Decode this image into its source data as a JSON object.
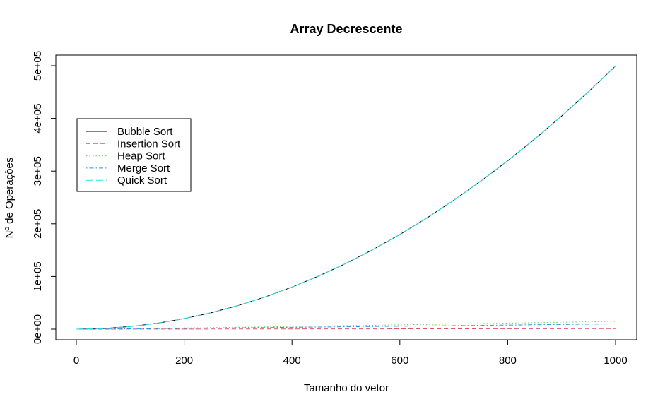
{
  "chart_data": {
    "type": "line",
    "title": "Array Decrescente",
    "xlabel": "Tamanho do vetor",
    "ylabel": "Nº de Operações",
    "xlim": [
      0,
      1000
    ],
    "ylim": [
      0,
      500000
    ],
    "xticks": [
      0,
      200,
      400,
      600,
      800,
      1000
    ],
    "xtick_labels": [
      "0",
      "200",
      "400",
      "600",
      "800",
      "1000"
    ],
    "yticks": [
      0,
      100000,
      200000,
      300000,
      400000,
      500000
    ],
    "ytick_labels": [
      "0e+00",
      "1e+05",
      "2e+05",
      "3e+05",
      "4e+05",
      "5e+05"
    ],
    "grid": false,
    "legend_position": "upper-left",
    "x": [
      0,
      50,
      100,
      150,
      200,
      250,
      300,
      350,
      400,
      450,
      500,
      550,
      600,
      650,
      700,
      750,
      800,
      850,
      900,
      950,
      1000
    ],
    "series": [
      {
        "name": "Bubble Sort",
        "color": "#000000",
        "dash": "solid",
        "values": [
          0,
          1225,
          4950,
          11175,
          19900,
          31125,
          44850,
          61075,
          79800,
          101025,
          124750,
          150975,
          179700,
          210925,
          244650,
          280875,
          319600,
          360825,
          404550,
          450775,
          499500
        ]
      },
      {
        "name": "Insertion Sort",
        "color": "#DF536B",
        "dash": "dashed",
        "values": [
          0,
          50,
          100,
          150,
          200,
          250,
          300,
          350,
          400,
          450,
          500,
          550,
          600,
          650,
          700,
          750,
          800,
          850,
          900,
          950,
          1000
        ]
      },
      {
        "name": "Heap Sort",
        "color": "#61D04F",
        "dash": "dotted",
        "values": [
          0,
          410,
          970,
          1590,
          2250,
          2940,
          3650,
          4380,
          5130,
          5890,
          6660,
          7440,
          8230,
          9030,
          9840,
          10650,
          11460,
          12280,
          13110,
          13940,
          14780
        ]
      },
      {
        "name": "Merge Sort",
        "color": "#2297E6",
        "dash": "dotdash",
        "values": [
          0,
          280,
          670,
          1100,
          1550,
          2020,
          2500,
          3000,
          3500,
          4020,
          4540,
          5070,
          5600,
          6140,
          6690,
          7240,
          7800,
          8360,
          8930,
          9500,
          10070
        ]
      },
      {
        "name": "Quick Sort",
        "color": "#28E2E5",
        "dash": "longdash",
        "values": [
          0,
          1225,
          4950,
          11175,
          19900,
          31125,
          44850,
          61075,
          79800,
          101025,
          124750,
          150975,
          179700,
          210925,
          244650,
          280875,
          319600,
          360825,
          404550,
          450775,
          499500
        ]
      }
    ]
  }
}
